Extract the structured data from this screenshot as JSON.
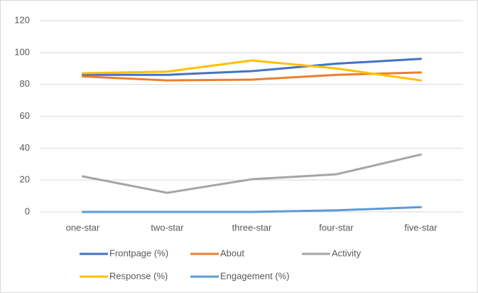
{
  "chart_data": {
    "type": "line",
    "categories": [
      "one-star",
      "two-star",
      "three-star",
      "four-star",
      "five-star"
    ],
    "series": [
      {
        "name": "Frontpage (%)",
        "color": "#4472c4",
        "values": [
          86,
          86,
          88.3,
          93,
          96
        ]
      },
      {
        "name": "About",
        "color": "#ed7d31",
        "values": [
          85,
          82.5,
          83,
          86,
          87.5
        ]
      },
      {
        "name": "Activity",
        "color": "#a5a5a5",
        "values": [
          22.3,
          12,
          20.5,
          23.6,
          36
        ]
      },
      {
        "name": "Response (%)",
        "color": "#ffc000",
        "values": [
          87,
          88,
          95,
          90,
          82.5
        ]
      },
      {
        "name": "Engagement (%)",
        "color": "#5b9bd5",
        "values": [
          0,
          0,
          0,
          1,
          3
        ]
      }
    ],
    "ylim": [
      0,
      120
    ],
    "yticks": [
      0,
      20,
      40,
      60,
      80,
      100,
      120
    ],
    "grid": true,
    "legend": "bottom"
  }
}
